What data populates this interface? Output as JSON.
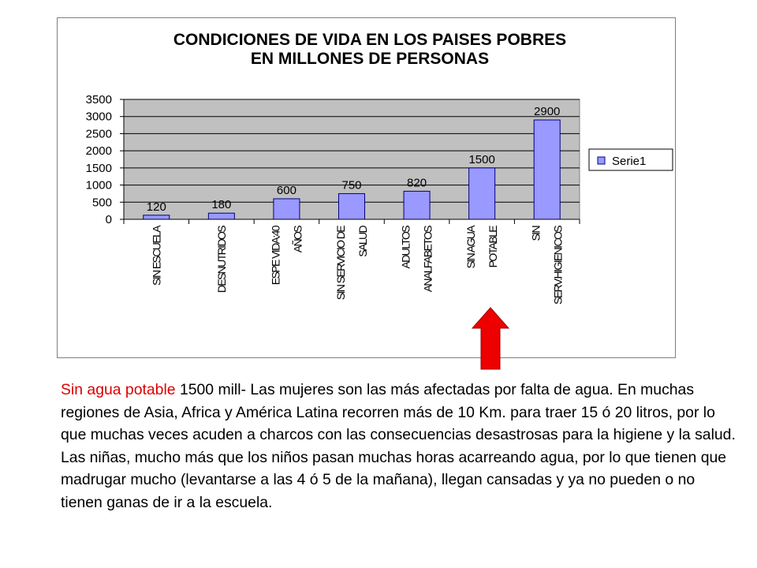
{
  "chart_data": {
    "type": "bar",
    "title_lines": [
      "CONDICIONES DE VIDA EN LOS PAISES POBRES",
      "EN MILLONES DE PERSONAS"
    ],
    "categories": [
      [
        "SIN ESCUELA"
      ],
      [
        "DESNUTRIDOS"
      ],
      [
        "ESPE VIDA:40",
        "AÑOS"
      ],
      [
        "SIN SERVICIO DE",
        "SALUD"
      ],
      [
        "ADULTOS",
        "ANALFABETOS"
      ],
      [
        "SIN AGUA",
        "POTABLE"
      ],
      [
        "SIN",
        "SERV.HIGIENICOS"
      ]
    ],
    "series": [
      {
        "name": "Serie1",
        "values": [
          120,
          180,
          600,
          750,
          820,
          1500,
          2900
        ]
      }
    ],
    "ylim": [
      0,
      3500
    ],
    "yticks": [
      0,
      500,
      1000,
      1500,
      2000,
      2500,
      3000,
      3500
    ],
    "grid": true,
    "legend_position": "right",
    "colors": {
      "bar_fill": "#9999ff",
      "bar_stroke": "#000080",
      "plot_bg": "#c0c0c0",
      "gridline": "#000000"
    }
  },
  "annotation": {
    "arrow_color": "#ee0000",
    "arrow_points_to": "SIN AGUA POTABLE"
  },
  "caption": {
    "highlight": "Sin agua potable",
    "highlight_color": "#dd0000",
    "text": " 1500 mill- Las mujeres son las más afectadas por falta de agua. En muchas regiones de Asia, Africa y América Latina recorren  más de 10 Km. para traer 15 ó 20 litros, por lo que muchas veces acuden a charcos con las consecuencias desastrosas para la higiene y la salud. Las niñas, mucho más que los niños pasan muchas horas acarreando agua, por lo que tienen que madrugar mucho (levantarse a las 4 ó 5 de la mañana), llegan cansadas y ya no pueden o no tienen ganas de ir a la escuela."
  }
}
